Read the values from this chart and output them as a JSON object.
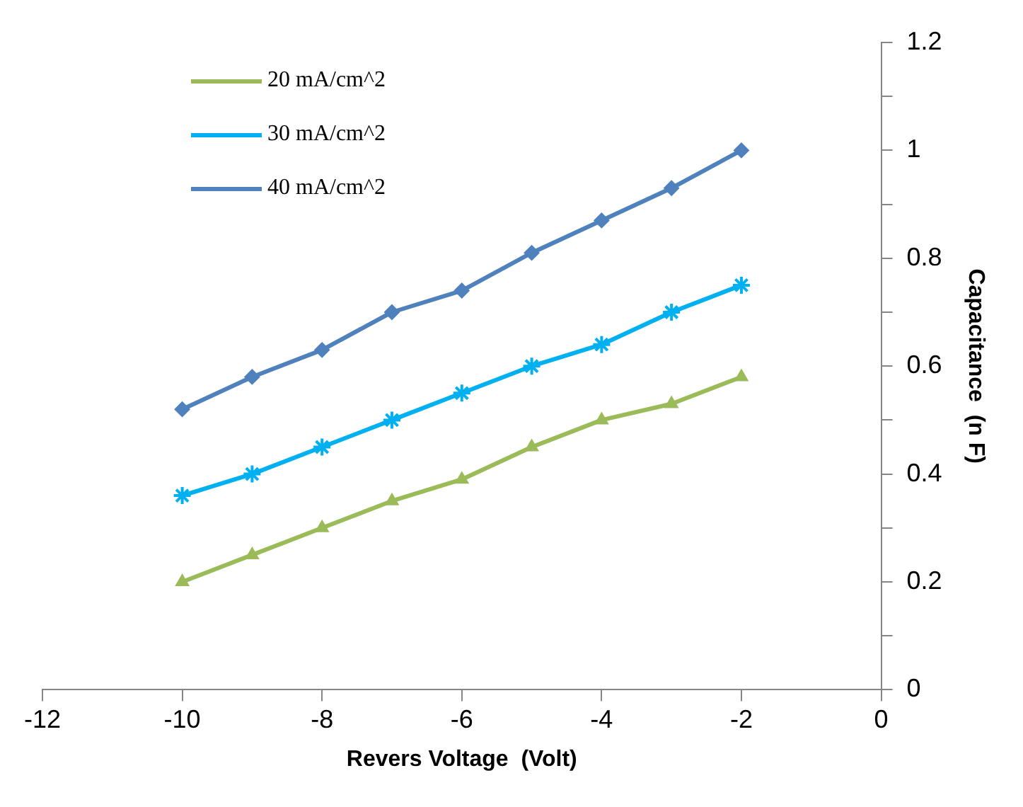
{
  "chart_data": {
    "type": "line",
    "xlabel": "Revers Voltage  (Volt)",
    "ylabel": "Capacitance  (n F)",
    "x": [
      -10,
      -9,
      -8,
      -7,
      -6,
      -5,
      -4,
      -3,
      -2
    ],
    "series": [
      {
        "name": "20 mA/cm^2",
        "color": "#9bbb59",
        "marker": "triangle",
        "values": [
          0.2,
          0.25,
          0.3,
          0.35,
          0.39,
          0.45,
          0.5,
          0.53,
          0.58
        ]
      },
      {
        "name": "30 mA/cm^2",
        "color": "#00b0f0",
        "marker": "cross",
        "values": [
          0.36,
          0.4,
          0.45,
          0.5,
          0.55,
          0.6,
          0.64,
          0.7,
          0.75
        ]
      },
      {
        "name": "40 mA/cm^2",
        "color": "#4f81bd",
        "marker": "diamond",
        "values": [
          0.52,
          0.58,
          0.63,
          0.7,
          0.74,
          0.81,
          0.87,
          0.93,
          1.0
        ]
      }
    ],
    "xlim": [
      -12,
      0
    ],
    "xticks": [
      -12,
      -10,
      -8,
      -6,
      -4,
      -2,
      0
    ],
    "ylim": [
      0,
      1.2
    ],
    "yticks": [
      0,
      {
        "value": 0.1,
        "label": null
      },
      0.2,
      {
        "value": 0.3,
        "label": null
      },
      0.4,
      {
        "value": 0.5,
        "label": null
      },
      0.6,
      {
        "value": 0.7,
        "label": null
      },
      0.8,
      {
        "value": 0.9,
        "label": null
      },
      1,
      {
        "value": 1.1,
        "label": null
      },
      1.2
    ],
    "grid": false,
    "legend": "top left",
    "line_style": "solid"
  }
}
